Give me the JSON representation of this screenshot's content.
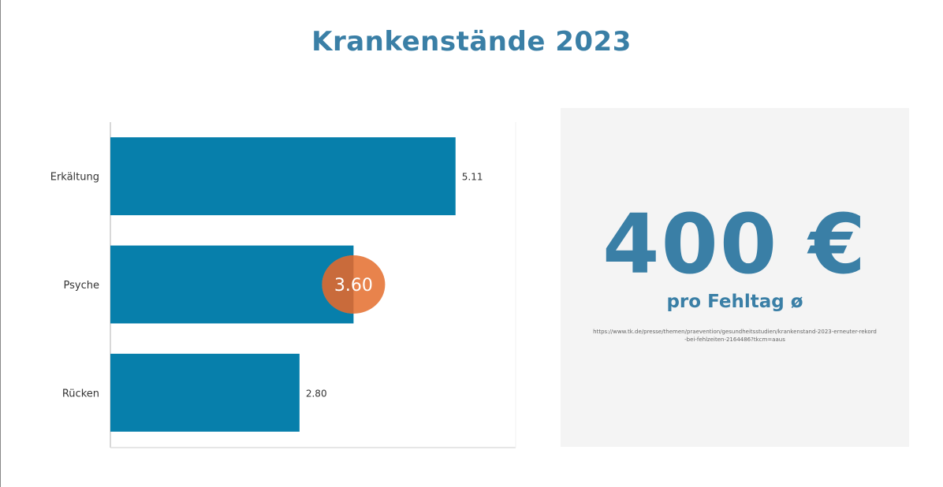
{
  "title": "Krankenstände 2023",
  "chart_data": {
    "type": "bar",
    "orientation": "horizontal",
    "title": "Krankenstände 2023",
    "categories": [
      "Erkältung",
      "Psyche",
      "Rücken"
    ],
    "values": [
      5.11,
      3.6,
      2.8
    ],
    "value_labels": [
      "5.11",
      "3.60",
      "2.80"
    ],
    "highlighted": "Psyche",
    "xlim": [
      0,
      6
    ],
    "xlabel": "",
    "ylabel": "",
    "grid": false,
    "colors": {
      "bar": "#077fab",
      "highlight": "#e8834c",
      "highlight_dark": "#c96b3b",
      "label": "#333333"
    }
  },
  "kpi": {
    "value": "400 €",
    "caption": "pro Fehltag ø",
    "source": "https://www.tk.de/presse/themen/praevention/gesundheitsstudien/krankenstand-2023-erneuter-rekord-bei-fehlzeiten-2164486?tkcm=aaus"
  }
}
